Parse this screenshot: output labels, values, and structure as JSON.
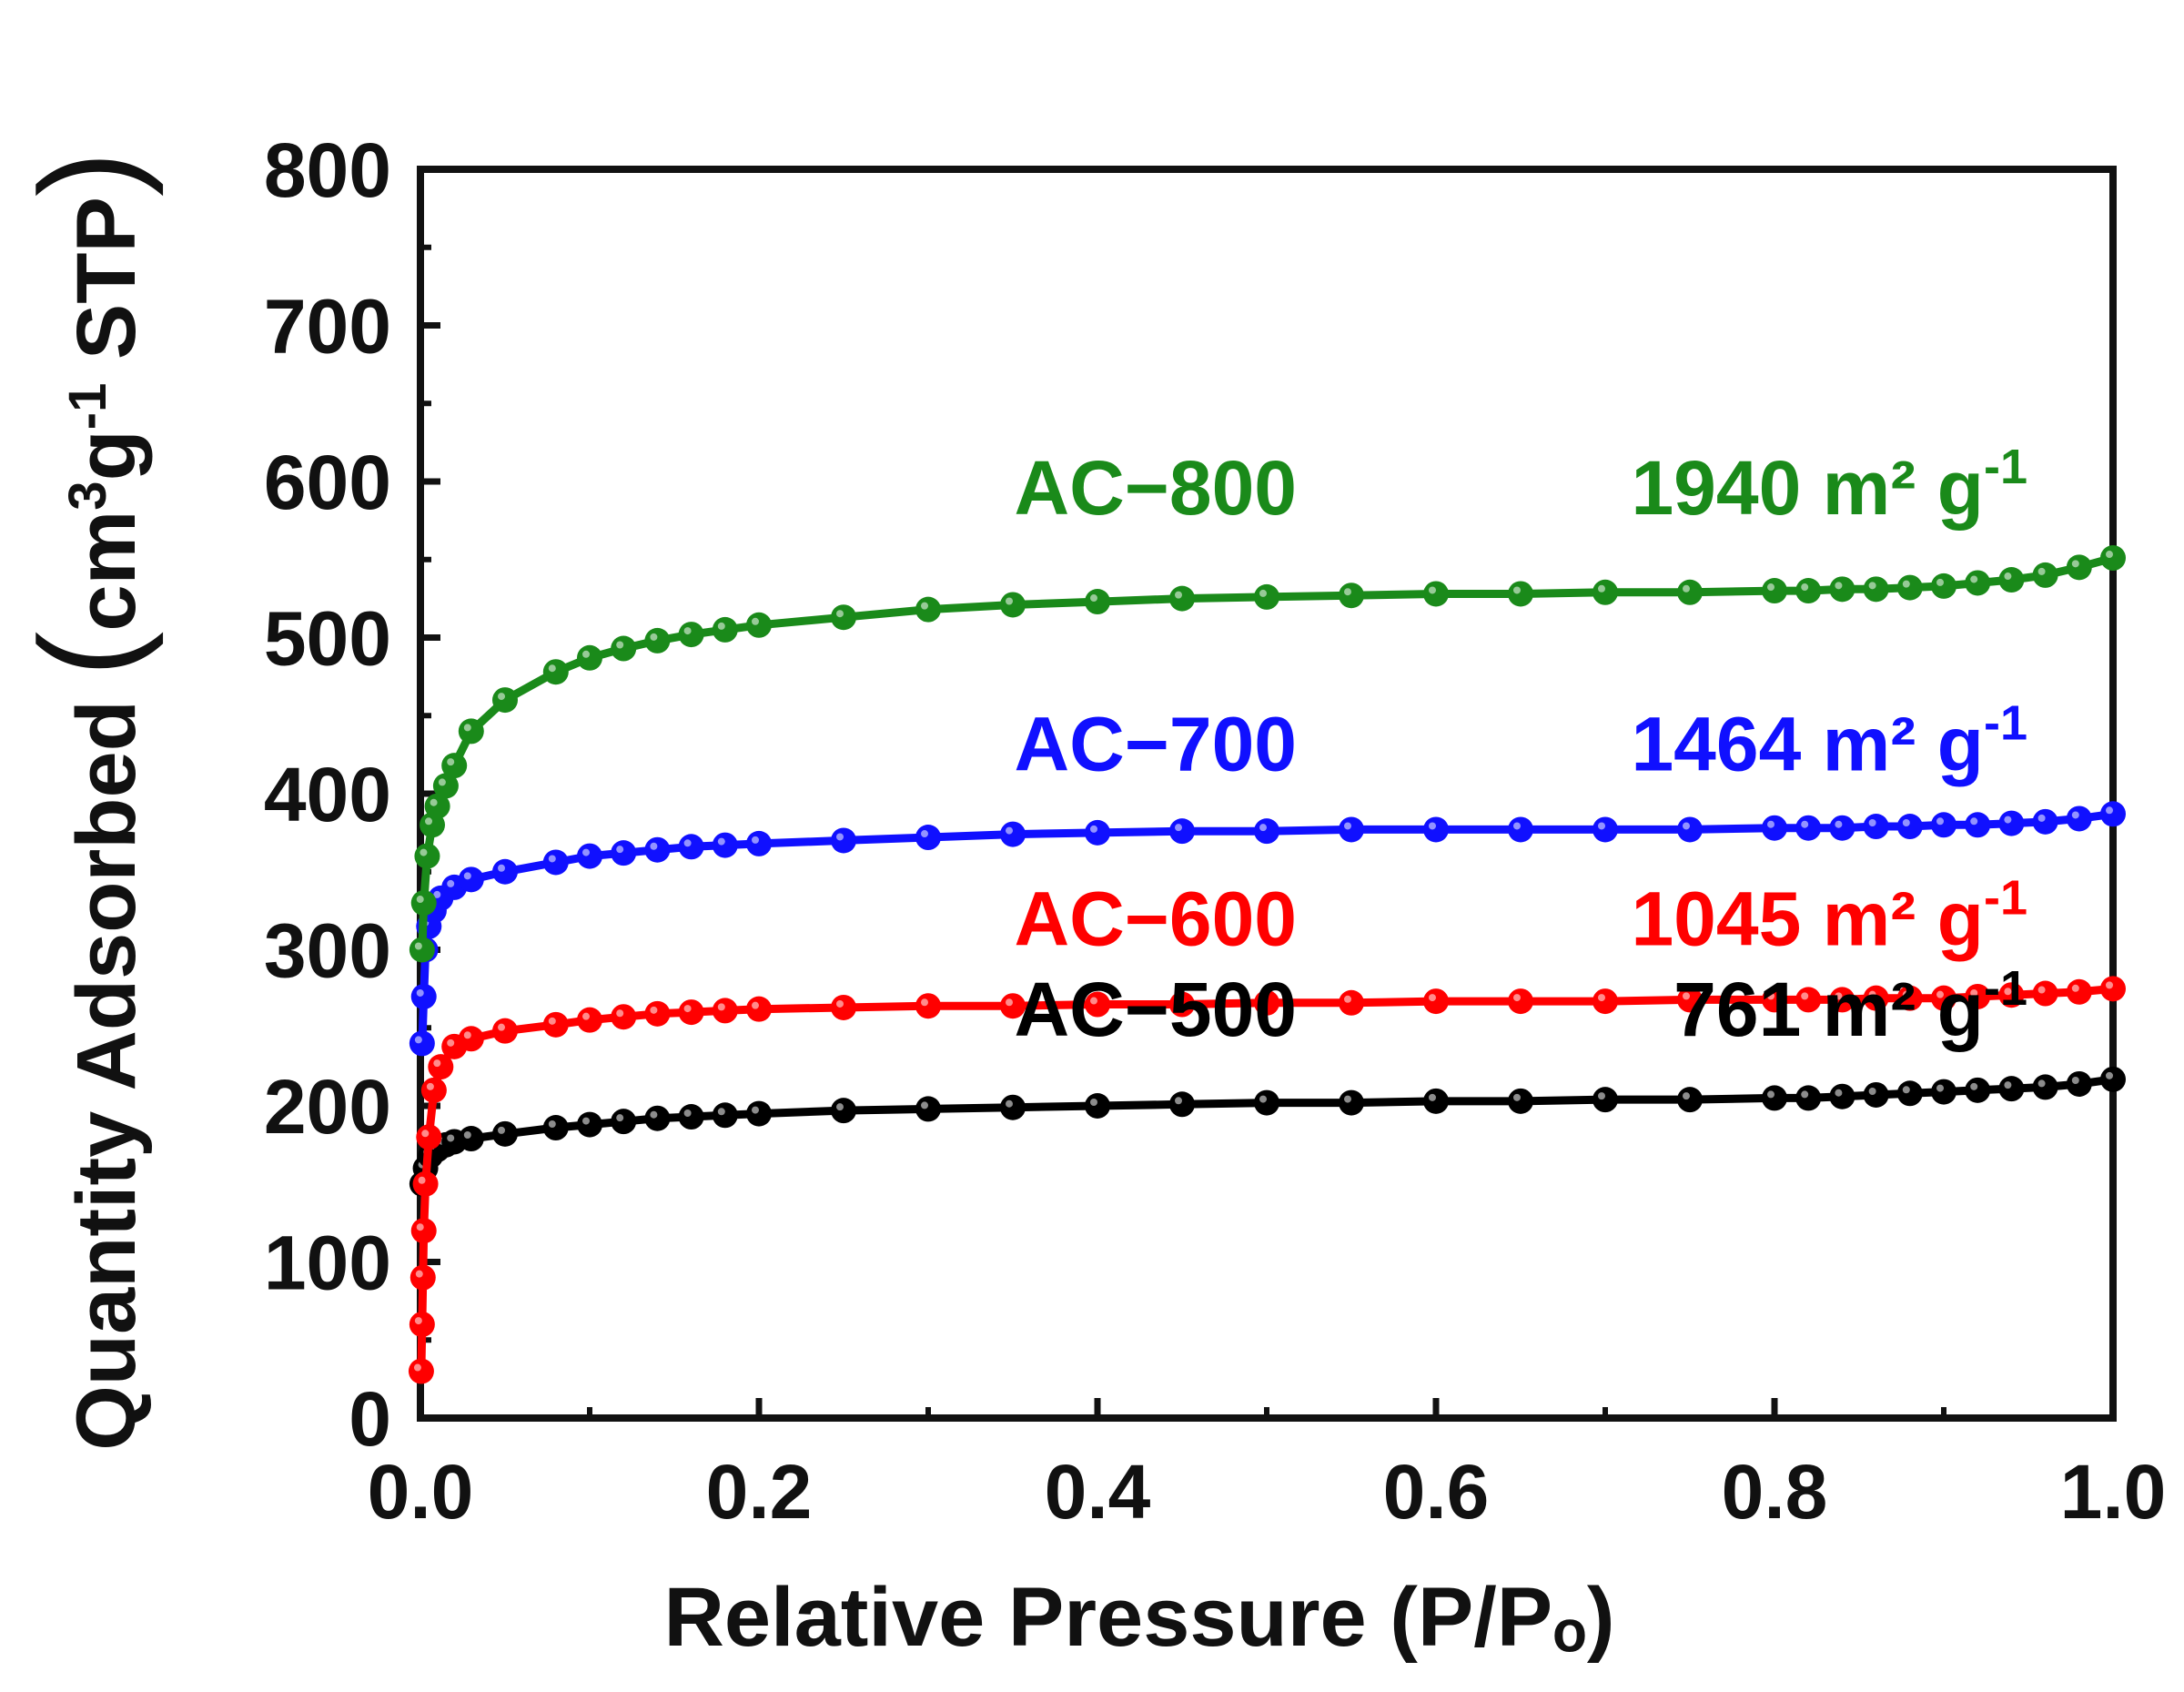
{
  "chart_data": {
    "type": "scatter",
    "title": "",
    "xlabel": "Relative Pressure (P/Pₒ)",
    "ylabel_prefix": "Quantity Adsorbed ",
    "ylabel_unit_cm": "cm",
    "ylabel_unit_cm_exp": "3",
    "ylabel_unit_g": "g",
    "ylabel_unit_g_exp": "-1",
    "ylabel_unit_stp": " STP",
    "ylabel": "Quantity Adsorbed (cm3g-1 STP)",
    "xlim": [
      0.0,
      1.0
    ],
    "ylim": [
      0,
      800
    ],
    "xticks": [
      0.0,
      0.2,
      0.4,
      0.6,
      0.8,
      1.0
    ],
    "xtick_labels": [
      "0.0",
      "0.2",
      "0.4",
      "0.6",
      "0.8",
      "1.0"
    ],
    "yticks": [
      0,
      100,
      200,
      300,
      400,
      500,
      600,
      700,
      800
    ],
    "ytick_labels": [
      "0",
      "100",
      "200",
      "300",
      "400",
      "500",
      "600",
      "700",
      "800"
    ],
    "grid": false,
    "legend": "inline labels at left-center and right",
    "series": [
      {
        "name": "AC−500",
        "color": "#000000",
        "surface_area": "761",
        "area_unit": "m² g",
        "area_exp": "-1",
        "x": [
          0.001,
          0.003,
          0.006,
          0.01,
          0.015,
          0.02,
          0.03,
          0.05,
          0.08,
          0.1,
          0.12,
          0.14,
          0.16,
          0.18,
          0.2,
          0.25,
          0.3,
          0.35,
          0.4,
          0.45,
          0.5,
          0.55,
          0.6,
          0.65,
          0.7,
          0.75,
          0.8,
          0.82,
          0.84,
          0.86,
          0.88,
          0.9,
          0.92,
          0.94,
          0.96,
          0.98,
          1.0
        ],
        "y": [
          150,
          160,
          168,
          172,
          175,
          177,
          179,
          182,
          186,
          188,
          190,
          192,
          193,
          194,
          195,
          197,
          198,
          199,
          200,
          201,
          202,
          202,
          203,
          203,
          204,
          204,
          205,
          205,
          206,
          207,
          208,
          209,
          210,
          211,
          212,
          214,
          217
        ]
      },
      {
        "name": "AC−600",
        "color": "#ff0000",
        "surface_area": "1045",
        "area_unit": "m² g",
        "area_exp": "-1",
        "x": [
          0.0005,
          0.001,
          0.0015,
          0.002,
          0.003,
          0.005,
          0.008,
          0.012,
          0.02,
          0.03,
          0.05,
          0.08,
          0.1,
          0.12,
          0.14,
          0.16,
          0.18,
          0.2,
          0.25,
          0.3,
          0.35,
          0.4,
          0.45,
          0.5,
          0.55,
          0.6,
          0.65,
          0.7,
          0.75,
          0.8,
          0.82,
          0.84,
          0.86,
          0.88,
          0.9,
          0.92,
          0.94,
          0.96,
          0.98,
          1.0
        ],
        "y": [
          30,
          60,
          90,
          120,
          150,
          180,
          210,
          225,
          238,
          243,
          248,
          252,
          255,
          257,
          259,
          260,
          261,
          262,
          263,
          264,
          264,
          265,
          265,
          266,
          266,
          267,
          267,
          267,
          268,
          268,
          268,
          268,
          269,
          269,
          269,
          270,
          271,
          272,
          273,
          275
        ]
      },
      {
        "name": "AC−700",
        "color": "#1010ff",
        "surface_area": "1464",
        "area_unit": "m² g",
        "area_exp": "-1",
        "x": [
          0.001,
          0.002,
          0.003,
          0.005,
          0.008,
          0.012,
          0.02,
          0.03,
          0.05,
          0.08,
          0.1,
          0.12,
          0.14,
          0.16,
          0.18,
          0.2,
          0.25,
          0.3,
          0.35,
          0.4,
          0.45,
          0.5,
          0.55,
          0.6,
          0.65,
          0.7,
          0.75,
          0.8,
          0.82,
          0.84,
          0.86,
          0.88,
          0.9,
          0.92,
          0.94,
          0.96,
          0.98,
          1.0
        ],
        "y": [
          240,
          270,
          300,
          315,
          325,
          333,
          340,
          345,
          350,
          356,
          360,
          362,
          364,
          366,
          367,
          368,
          370,
          372,
          374,
          375,
          376,
          376,
          377,
          377,
          377,
          377,
          377,
          378,
          378,
          378,
          379,
          379,
          380,
          380,
          381,
          382,
          384,
          387
        ]
      },
      {
        "name": "AC−800",
        "color": "#1a8a1a",
        "surface_area": "1940",
        "area_unit": "m² g",
        "area_exp": "-1",
        "x": [
          0.001,
          0.002,
          0.004,
          0.007,
          0.01,
          0.015,
          0.02,
          0.03,
          0.05,
          0.08,
          0.1,
          0.12,
          0.14,
          0.16,
          0.18,
          0.2,
          0.25,
          0.3,
          0.35,
          0.4,
          0.45,
          0.5,
          0.55,
          0.6,
          0.65,
          0.7,
          0.75,
          0.8,
          0.82,
          0.84,
          0.86,
          0.88,
          0.9,
          0.92,
          0.94,
          0.96,
          0.98,
          1.0
        ],
        "y": [
          300,
          330,
          360,
          380,
          392,
          405,
          418,
          440,
          460,
          478,
          487,
          493,
          498,
          502,
          505,
          508,
          513,
          518,
          521,
          523,
          525,
          526,
          527,
          528,
          528,
          529,
          529,
          530,
          530,
          531,
          531,
          532,
          533,
          535,
          537,
          540,
          545,
          551
        ]
      }
    ]
  }
}
